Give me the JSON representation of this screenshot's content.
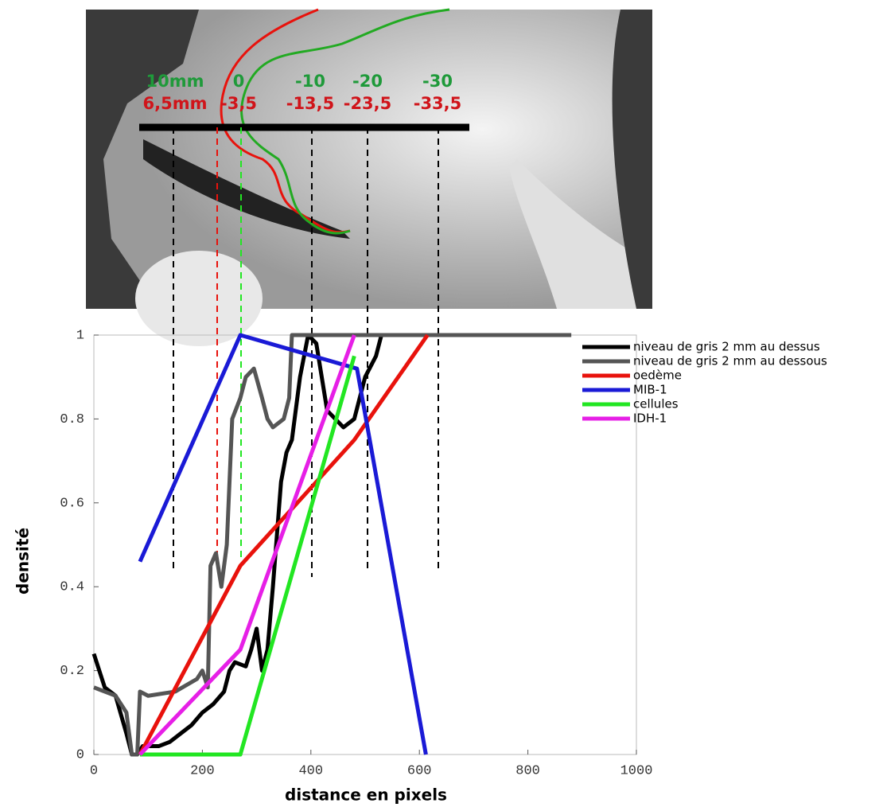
{
  "chart_data": {
    "type": "line",
    "x_label": "distance en pixels",
    "y_label": "densité",
    "xlim": [
      0,
      1000
    ],
    "xticks": [
      0,
      200,
      400,
      600,
      800,
      1000
    ],
    "ylim": [
      0,
      1
    ],
    "yticks": [
      0,
      0.2,
      0.4,
      0.6,
      0.8,
      1
    ],
    "image_annotations": {
      "green": [
        "10mm",
        "0",
        "-10",
        "-20",
        "-30"
      ],
      "red": [
        "6,5mm",
        "-3,5",
        "-13,5",
        "-23,5",
        "-33,5"
      ]
    },
    "series": [
      {
        "name": "niveau de gris 2 mm au dessus",
        "color": "#000000",
        "x": [
          0,
          10,
          20,
          40,
          60,
          70,
          80,
          90,
          120,
          140,
          160,
          180,
          200,
          220,
          240,
          250,
          260,
          280,
          290,
          300,
          310,
          320,
          330,
          345,
          355,
          365,
          380,
          395,
          410,
          420,
          430,
          445,
          460,
          480,
          500,
          520,
          530,
          700
        ],
        "values": [
          0.24,
          0.2,
          0.16,
          0.14,
          0.05,
          0,
          0,
          0.02,
          0.02,
          0.03,
          0.05,
          0.07,
          0.1,
          0.12,
          0.15,
          0.2,
          0.22,
          0.21,
          0.25,
          0.3,
          0.2,
          0.25,
          0.4,
          0.65,
          0.72,
          0.75,
          0.9,
          1,
          0.98,
          0.9,
          0.82,
          0.8,
          0.78,
          0.8,
          0.9,
          0.95,
          1,
          1
        ]
      },
      {
        "name": "niveau de gris 2 mm au dessous",
        "color": "#555555",
        "x": [
          0,
          20,
          40,
          60,
          70,
          80,
          85,
          100,
          150,
          190,
          200,
          210,
          215,
          225,
          235,
          245,
          255,
          270,
          280,
          295,
          310,
          320,
          330,
          350,
          360,
          365,
          400,
          880
        ],
        "values": [
          0.16,
          0.15,
          0.14,
          0.1,
          0,
          0,
          0.15,
          0.14,
          0.15,
          0.18,
          0.2,
          0.16,
          0.45,
          0.48,
          0.4,
          0.5,
          0.8,
          0.85,
          0.9,
          0.92,
          0.85,
          0.8,
          0.78,
          0.8,
          0.85,
          1,
          1,
          1
        ]
      },
      {
        "name": "oedème",
        "color": "#e8120c",
        "x": [
          85,
          270,
          480,
          615
        ],
        "values": [
          0,
          0.45,
          0.75,
          1
        ]
      },
      {
        "name": "MIB-1",
        "color": "#1a1ad6",
        "x": [
          85,
          270,
          485,
          612
        ],
        "values": [
          0.46,
          1,
          0.92,
          0
        ]
      },
      {
        "name": "cellules",
        "color": "#22e622",
        "x": [
          85,
          270,
          480
        ],
        "values": [
          0,
          0,
          0.95
        ]
      },
      {
        "name": "IDH-1",
        "color": "#e61fe6",
        "x": [
          85,
          270,
          480
        ],
        "values": [
          0,
          0.25,
          1
        ]
      }
    ]
  }
}
